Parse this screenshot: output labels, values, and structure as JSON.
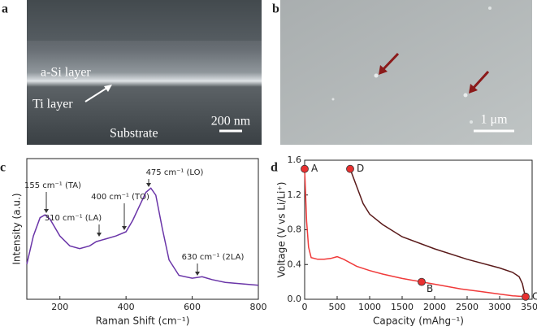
{
  "images": [
    {
      "label": "a",
      "annotations": [
        "a-Si layer",
        "Ti layer",
        "Substrate"
      ],
      "scale_bar": "200 nm"
    },
    {
      "label": "b",
      "scale_bar": "1 μm"
    }
  ],
  "chart_data": [
    {
      "type": "line",
      "label": "c",
      "xlabel": "Raman Shift (cm⁻¹)",
      "ylabel": "Intensity (a.u.)",
      "xlim": [
        100,
        800
      ],
      "xticks": [
        200,
        400,
        600,
        800
      ],
      "ylim": [
        0,
        1
      ],
      "x": [
        100,
        120,
        140,
        155,
        170,
        200,
        230,
        260,
        290,
        310,
        340,
        370,
        400,
        420,
        440,
        460,
        475,
        490,
        510,
        530,
        560,
        600,
        630,
        660,
        700,
        750,
        800
      ],
      "series": [
        {
          "color": "#6a35a8",
          "values": [
            0.25,
            0.45,
            0.58,
            0.6,
            0.57,
            0.45,
            0.38,
            0.36,
            0.38,
            0.41,
            0.43,
            0.45,
            0.48,
            0.56,
            0.66,
            0.76,
            0.79,
            0.74,
            0.5,
            0.28,
            0.17,
            0.15,
            0.16,
            0.14,
            0.12,
            0.11,
            0.1
          ]
        }
      ],
      "annotations": [
        "155 cm⁻¹ (TA)",
        "310 cm⁻¹ (LA)",
        "400 cm⁻¹ (TO)",
        "475 cm⁻¹ (LO)",
        "630 cm⁻¹ (2LA)"
      ]
    },
    {
      "type": "line",
      "label": "d",
      "xlabel": "Capacity (mAhg⁻¹)",
      "ylabel": "Voltage (V vs Li/Li⁺)",
      "xlim": [
        0,
        3500
      ],
      "xticks": [
        0,
        500,
        1000,
        1500,
        2000,
        2500,
        3000,
        3500
      ],
      "ylim": [
        0,
        1.6
      ],
      "yticks": [
        {
          "value": 0,
          "label": "0.0"
        },
        0.4,
        0.8,
        1.2,
        1.6
      ],
      "series": [
        {
          "color": "#f03a3a",
          "x": [
            0,
            10,
            30,
            60,
            100,
            200,
            300,
            400,
            500,
            600,
            800,
            1000,
            1200,
            1500,
            1800,
            2100,
            2400,
            2700,
            3000,
            3200,
            3400
          ],
          "values": [
            1.5,
            1.3,
            0.9,
            0.6,
            0.48,
            0.46,
            0.46,
            0.47,
            0.49,
            0.46,
            0.38,
            0.33,
            0.29,
            0.24,
            0.2,
            0.16,
            0.12,
            0.09,
            0.06,
            0.04,
            0.03
          ]
        },
        {
          "color": "#5a1a1a",
          "x": [
            700,
            800,
            900,
            1000,
            1200,
            1500,
            2000,
            2500,
            3000,
            3200,
            3300,
            3350,
            3380,
            3400
          ],
          "values": [
            1.5,
            1.3,
            1.1,
            0.98,
            0.86,
            0.72,
            0.58,
            0.46,
            0.36,
            0.31,
            0.26,
            0.18,
            0.08,
            0.03
          ]
        }
      ],
      "points": [
        {
          "label": "A",
          "x": 0,
          "y": 1.5
        },
        {
          "label": "B",
          "x": 1800,
          "y": 0.2
        },
        {
          "label": "C",
          "x": 3400,
          "y": 0.03
        },
        {
          "label": "D",
          "x": 700,
          "y": 1.5
        }
      ],
      "point_color": "#e83030"
    }
  ]
}
